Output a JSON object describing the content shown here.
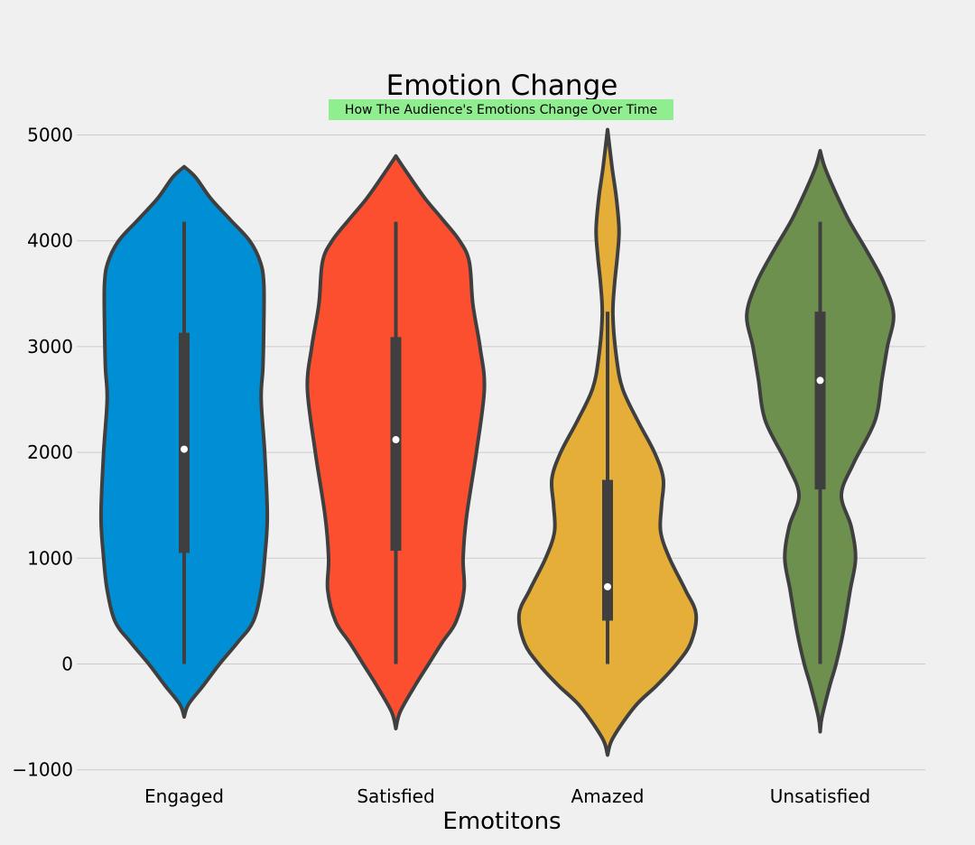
{
  "chart_data": {
    "type": "violin",
    "title": "Emotion Change",
    "subtitle": "How The Audience's Emotions Change Over Time",
    "subtitle_bg": "#90ee90",
    "xlabel": "Emotitons",
    "ylabel": "",
    "ylim": [
      -1150,
      5350
    ],
    "yticks": [
      -1000,
      0,
      1000,
      2000,
      3000,
      4000,
      5000
    ],
    "ytick_labels": [
      "−1000",
      "0",
      "1000",
      "2000",
      "3000",
      "4000",
      "5000"
    ],
    "grid": "horizontal",
    "categories": [
      "Engaged",
      "Satisfied",
      "Amazed",
      "Unsatisfied"
    ],
    "colors": [
      "#008fd5",
      "#fc4f30",
      "#e5ae38",
      "#6d904f"
    ],
    "series": [
      {
        "median": 2030,
        "q1": 1050,
        "q3": 3130,
        "min": 0,
        "max": 4180,
        "profile": [
          [
            -500,
            0
          ],
          [
            -380,
            0.05
          ],
          [
            -200,
            0.22
          ],
          [
            0,
            0.4
          ],
          [
            200,
            0.6
          ],
          [
            400,
            0.78
          ],
          [
            700,
            0.87
          ],
          [
            1000,
            0.91
          ],
          [
            1400,
            0.94
          ],
          [
            2000,
            0.91
          ],
          [
            2500,
            0.87
          ],
          [
            2800,
            0.89
          ],
          [
            3200,
            0.9
          ],
          [
            3600,
            0.9
          ],
          [
            3800,
            0.86
          ],
          [
            4000,
            0.74
          ],
          [
            4200,
            0.52
          ],
          [
            4400,
            0.3
          ],
          [
            4600,
            0.13
          ],
          [
            4700,
            0
          ]
        ]
      },
      {
        "median": 2120,
        "q1": 1070,
        "q3": 3090,
        "min": 0,
        "max": 4180,
        "profile": [
          [
            -610,
            0
          ],
          [
            -450,
            0.05
          ],
          [
            -200,
            0.22
          ],
          [
            0,
            0.37
          ],
          [
            200,
            0.52
          ],
          [
            400,
            0.68
          ],
          [
            700,
            0.77
          ],
          [
            1000,
            0.76
          ],
          [
            1400,
            0.8
          ],
          [
            2000,
            0.91
          ],
          [
            2600,
            1.0
          ],
          [
            3000,
            0.95
          ],
          [
            3400,
            0.87
          ],
          [
            3800,
            0.83
          ],
          [
            4000,
            0.72
          ],
          [
            4200,
            0.53
          ],
          [
            4400,
            0.33
          ],
          [
            4650,
            0.12
          ],
          [
            4800,
            0
          ]
        ]
      },
      {
        "median": 730,
        "q1": 410,
        "q3": 1740,
        "min": 0,
        "max": 3330,
        "profile": [
          [
            -860,
            0
          ],
          [
            -700,
            0.06
          ],
          [
            -400,
            0.31
          ],
          [
            -200,
            0.56
          ],
          [
            0,
            0.78
          ],
          [
            200,
            0.94
          ],
          [
            470,
            1.0
          ],
          [
            700,
            0.88
          ],
          [
            1000,
            0.7
          ],
          [
            1250,
            0.6
          ],
          [
            1500,
            0.61
          ],
          [
            1750,
            0.63
          ],
          [
            2000,
            0.53
          ],
          [
            2300,
            0.34
          ],
          [
            2600,
            0.17
          ],
          [
            2900,
            0.1
          ],
          [
            3300,
            0.06
          ],
          [
            3600,
            0.08
          ],
          [
            3850,
            0.11
          ],
          [
            4100,
            0.13
          ],
          [
            4400,
            0.1
          ],
          [
            4700,
            0.05
          ],
          [
            5050,
            0
          ]
        ]
      },
      {
        "median": 2680,
        "q1": 1650,
        "q3": 3330,
        "min": 0,
        "max": 4180,
        "profile": [
          [
            -640,
            0
          ],
          [
            -500,
            0.02
          ],
          [
            -200,
            0.11
          ],
          [
            0,
            0.18
          ],
          [
            300,
            0.26
          ],
          [
            700,
            0.34
          ],
          [
            1000,
            0.4
          ],
          [
            1300,
            0.35
          ],
          [
            1600,
            0.24
          ],
          [
            1900,
            0.38
          ],
          [
            2300,
            0.62
          ],
          [
            2700,
            0.7
          ],
          [
            3000,
            0.76
          ],
          [
            3300,
            0.83
          ],
          [
            3600,
            0.72
          ],
          [
            3900,
            0.53
          ],
          [
            4200,
            0.32
          ],
          [
            4500,
            0.15
          ],
          [
            4700,
            0.05
          ],
          [
            4850,
            0
          ]
        ]
      }
    ]
  }
}
